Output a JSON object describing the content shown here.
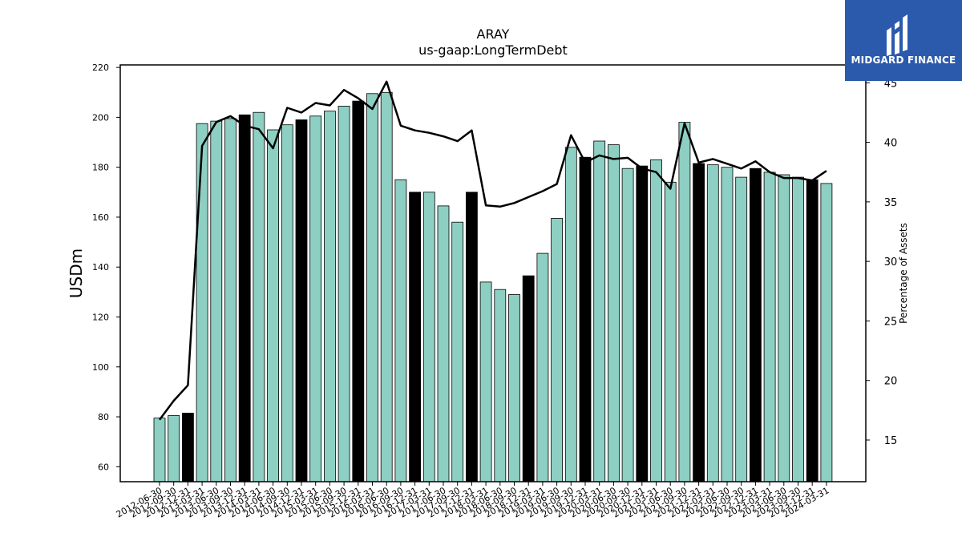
{
  "chart_data": {
    "type": "bar",
    "title": "ARAY",
    "subtitle": "us-gaap:LongTermDebt",
    "ylabel": "USDm",
    "y2label": "Percentage of Assets",
    "ylim": [
      54,
      221
    ],
    "y2lim": [
      11.5,
      46.5
    ],
    "yticks": [
      60,
      80,
      100,
      120,
      140,
      160,
      180,
      200,
      220
    ],
    "y2ticks": [
      15,
      20,
      25,
      30,
      35,
      40,
      45
    ],
    "categories": [
      "2012-06-30",
      "2012-09-30",
      "2012-12-31",
      "2013-03-31",
      "2013-06-30",
      "2013-09-30",
      "2013-12-31",
      "2014-03-31",
      "2014-06-30",
      "2014-09-30",
      "2014-12-31",
      "2015-03-31",
      "2015-06-30",
      "2015-09-30",
      "2015-12-31",
      "2016-03-31",
      "2016-06-30",
      "2016-09-30",
      "2016-12-31",
      "2017-03-31",
      "2017-06-30",
      "2017-09-30",
      "2017-12-31",
      "2018-03-31",
      "2018-06-30",
      "2018-09-30",
      "2018-12-31",
      "2019-03-31",
      "2019-06-30",
      "2019-09-30",
      "2019-12-31",
      "2020-03-31",
      "2020-06-30",
      "2020-09-30",
      "2020-12-31",
      "2021-03-31",
      "2021-06-30",
      "2021-09-30",
      "2021-12-31",
      "2022-03-31",
      "2022-06-30",
      "2022-09-30",
      "2022-12-31",
      "2023-03-31",
      "2023-06-30",
      "2023-09-30",
      "2023-12-31",
      "2024-03-31"
    ],
    "series": [
      {
        "kind": "bar",
        "values": [
          79.5,
          80.5,
          81.5,
          197.5,
          198.5,
          199.5,
          201,
          202,
          195,
          197,
          199,
          200.5,
          202.5,
          204.5,
          206.5,
          209.5,
          210,
          175,
          170,
          170,
          164.5,
          158,
          170,
          134,
          131,
          129,
          136.5,
          145.5,
          159.5,
          188,
          184,
          190.5,
          189,
          179.5,
          180.5,
          183,
          174,
          198,
          181.5,
          181,
          180,
          176,
          179.5,
          178,
          177,
          176,
          175,
          173.5
        ],
        "highlight": [
          false,
          false,
          true,
          false,
          false,
          false,
          true,
          false,
          false,
          false,
          true,
          false,
          false,
          false,
          true,
          false,
          false,
          false,
          true,
          false,
          false,
          false,
          true,
          false,
          false,
          false,
          true,
          false,
          false,
          false,
          true,
          false,
          false,
          false,
          true,
          false,
          false,
          false,
          true,
          false,
          false,
          false,
          true,
          false,
          false,
          false,
          true,
          false
        ]
      },
      {
        "kind": "line",
        "axis": "right",
        "values": [
          16.7,
          18.3,
          19.6,
          39.7,
          41.7,
          42.2,
          41.4,
          41.1,
          39.5,
          42.9,
          42.5,
          43.3,
          43.1,
          44.4,
          43.7,
          42.8,
          45.1,
          41.4,
          41.0,
          40.8,
          40.5,
          40.1,
          41.0,
          34.7,
          34.6,
          34.9,
          35.4,
          35.9,
          36.5,
          40.6,
          38.3,
          38.9,
          38.6,
          38.7,
          37.8,
          37.5,
          36.1,
          41.6,
          38.3,
          38.6,
          38.2,
          37.8,
          38.4,
          37.5,
          37.0,
          37.0,
          36.8,
          37.6
        ]
      }
    ],
    "colors": {
      "bar": "#8ecfc3",
      "bar_highlight": "#000000",
      "line": "#000000"
    }
  },
  "logo": {
    "text": "MIDGARD FINANCE",
    "background": "#2b5aad"
  }
}
